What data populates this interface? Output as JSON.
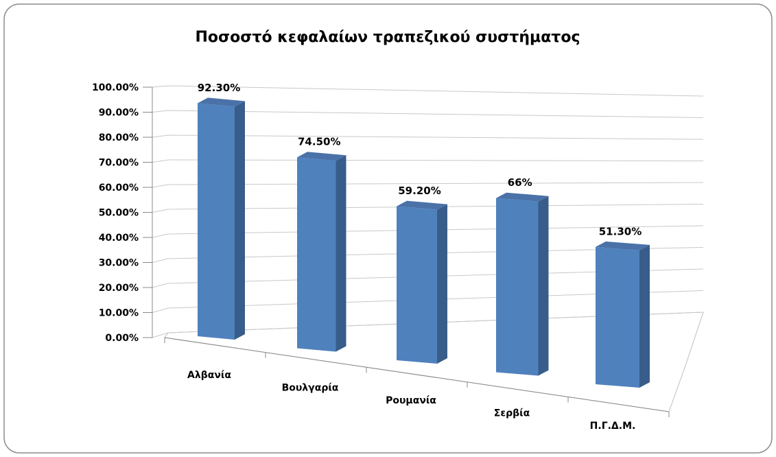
{
  "chart_data": {
    "type": "bar",
    "title": "Ποσοστό κεφαλαίων τραπεζικού συστήματος",
    "categories": [
      "Αλβανία",
      "Βουλγαρία",
      "Ρουμανία",
      "Σερβία",
      "Π.Γ.Δ.Μ."
    ],
    "values": [
      92.3,
      74.5,
      59.2,
      66,
      51.3
    ],
    "value_labels": [
      "92.30%",
      "74.50%",
      "59.20%",
      "66%",
      "51.30%"
    ],
    "color": "#4f81bd",
    "ylim": [
      0,
      100
    ],
    "yticks": [
      {
        "value": 0,
        "label": "0.00%"
      },
      {
        "value": 10,
        "label": "10.00%"
      },
      {
        "value": 20,
        "label": "20.00%"
      },
      {
        "value": 30,
        "label": "30.00%"
      },
      {
        "value": 40,
        "label": "40.00%"
      },
      {
        "value": 50,
        "label": "50.00%"
      },
      {
        "value": 60,
        "label": "60.00%"
      },
      {
        "value": 70,
        "label": "70.00%"
      },
      {
        "value": 80,
        "label": "80.00%"
      },
      {
        "value": 90,
        "label": "90.00%"
      },
      {
        "value": 100,
        "label": "100.00%"
      }
    ],
    "grid": true
  }
}
